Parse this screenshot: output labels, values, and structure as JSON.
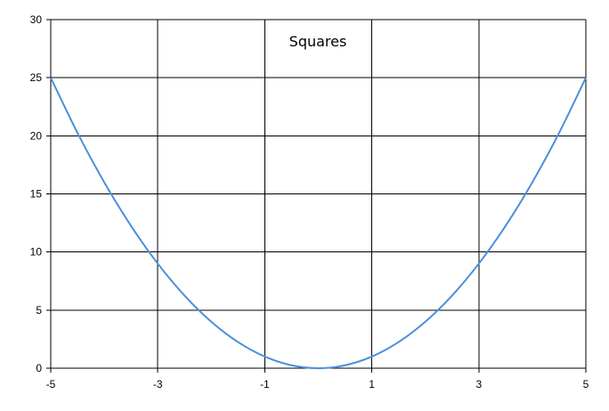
{
  "chart_data": {
    "type": "line",
    "title": "Squares",
    "xlabel": "",
    "ylabel": "",
    "xlim": [
      -5,
      5
    ],
    "ylim": [
      0,
      30
    ],
    "x_ticks": [
      -5,
      -3,
      -1,
      1,
      3,
      5
    ],
    "y_ticks": [
      0,
      5,
      10,
      15,
      20,
      25,
      30
    ],
    "x_tick_labels": [
      "-5",
      "-3",
      "-1",
      "1",
      "3",
      "5"
    ],
    "y_tick_labels": [
      "0",
      "5",
      "10",
      "15",
      "20",
      "25",
      "30"
    ],
    "grid": true,
    "legend": "none",
    "series": [
      {
        "color": "#4a8fdc",
        "x": [
          -5,
          -4.5,
          -4,
          -3.5,
          -3,
          -2.5,
          -2,
          -1.5,
          -1,
          -0.5,
          0,
          0.5,
          1,
          1.5,
          2,
          2.5,
          3,
          3.5,
          4,
          4.5,
          5
        ],
        "y": [
          25,
          20.25,
          16,
          12.25,
          9,
          6.25,
          4,
          2.25,
          1,
          0.25,
          0,
          0.25,
          1,
          2.25,
          4,
          6.25,
          9,
          12.25,
          16,
          20.25,
          25
        ]
      }
    ]
  }
}
